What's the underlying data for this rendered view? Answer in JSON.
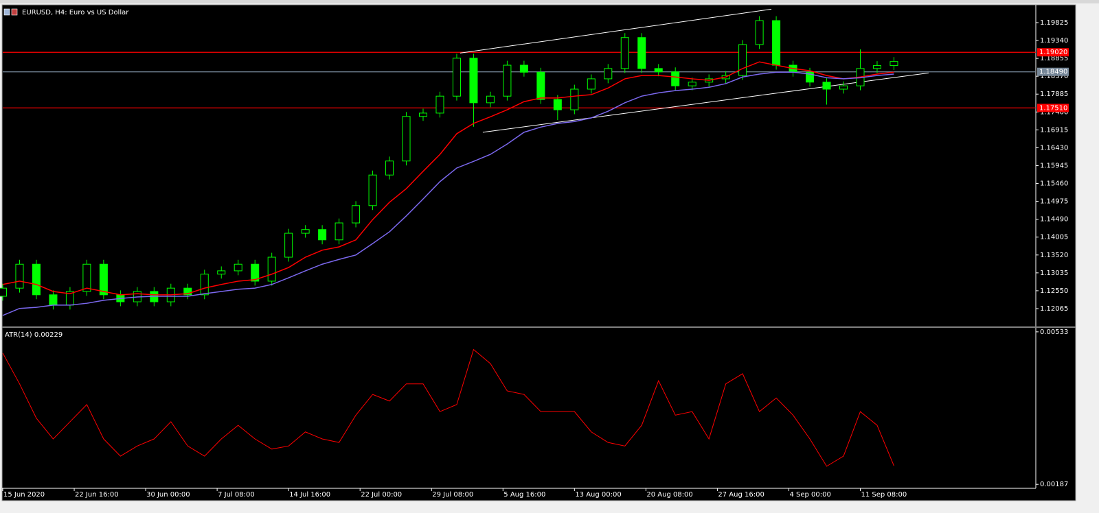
{
  "chart_data": [
    {
      "type": "candlestick",
      "title": "EURUSD, H4:  Euro vs US Dollar",
      "color": "#00ff00",
      "x": [
        0,
        8,
        16,
        24,
        32,
        40,
        48,
        56,
        64,
        72,
        80,
        88,
        96,
        104,
        112,
        120,
        128,
        136,
        144,
        152,
        160,
        168,
        176,
        184,
        192,
        200,
        208,
        216,
        224,
        232,
        240,
        248,
        256,
        264,
        272,
        280,
        288,
        296,
        304,
        312,
        320,
        328,
        336,
        344,
        352,
        360,
        368,
        376,
        384,
        392,
        400,
        408,
        416,
        424
      ],
      "open": [
        1.124,
        1.1262,
        1.1327,
        1.1244,
        1.1216,
        1.1253,
        1.1327,
        1.1244,
        1.1225,
        1.1253,
        1.1225,
        1.1262,
        1.1244,
        1.13,
        1.1309,
        1.1327,
        1.1281,
        1.1346,
        1.1411,
        1.1421,
        1.1393,
        1.1439,
        1.1486,
        1.1569,
        1.1607,
        1.1728,
        1.1737,
        1.1783,
        1.1886,
        1.1765,
        1.1783,
        1.1867,
        1.1848,
        1.1774,
        1.1746,
        1.1802,
        1.183,
        1.1858,
        1.1942,
        1.1858,
        1.1849,
        1.1811,
        1.1821,
        1.183,
        1.1839,
        1.1923,
        1.1988,
        1.1867,
        1.1848,
        1.1821,
        1.1802,
        1.1811,
        1.1858,
        1.1866
      ],
      "high": [
        1.1274,
        1.1339,
        1.1339,
        1.1256,
        1.1265,
        1.1339,
        1.1339,
        1.1256,
        1.1265,
        1.1265,
        1.1274,
        1.1274,
        1.1312,
        1.1321,
        1.1339,
        1.1339,
        1.1358,
        1.1423,
        1.1433,
        1.1433,
        1.1451,
        1.1498,
        1.1581,
        1.1619,
        1.174,
        1.1749,
        1.1795,
        1.1898,
        1.1898,
        1.1795,
        1.1879,
        1.1879,
        1.186,
        1.1786,
        1.1814,
        1.1842,
        1.187,
        1.1954,
        1.1954,
        1.187,
        1.1861,
        1.1833,
        1.1842,
        1.1851,
        1.1935,
        1.2,
        1.2,
        1.1879,
        1.186,
        1.1833,
        1.1823,
        1.191,
        1.1878,
        1.1889
      ],
      "low": [
        1.1228,
        1.125,
        1.1232,
        1.1204,
        1.1204,
        1.1241,
        1.1232,
        1.1213,
        1.1213,
        1.1213,
        1.1213,
        1.1232,
        1.1232,
        1.1288,
        1.1297,
        1.1269,
        1.1269,
        1.1334,
        1.1399,
        1.1381,
        1.1381,
        1.1427,
        1.1474,
        1.1557,
        1.1595,
        1.1716,
        1.1725,
        1.1771,
        1.17,
        1.1753,
        1.1771,
        1.1836,
        1.1762,
        1.1718,
        1.1734,
        1.179,
        1.1818,
        1.1846,
        1.1846,
        1.1837,
        1.1799,
        1.1799,
        1.1809,
        1.1818,
        1.1827,
        1.1911,
        1.1855,
        1.1836,
        1.1809,
        1.176,
        1.179,
        1.1799,
        1.1846,
        1.1854
      ],
      "close": [
        1.1262,
        1.1327,
        1.1244,
        1.1216,
        1.1253,
        1.1327,
        1.1244,
        1.1225,
        1.1253,
        1.1225,
        1.1262,
        1.1244,
        1.13,
        1.1309,
        1.1327,
        1.1281,
        1.1346,
        1.1411,
        1.1421,
        1.1393,
        1.1439,
        1.1486,
        1.1569,
        1.1607,
        1.1728,
        1.1737,
        1.1783,
        1.1886,
        1.1765,
        1.1783,
        1.1867,
        1.1848,
        1.1774,
        1.1746,
        1.1802,
        1.183,
        1.1858,
        1.1942,
        1.1858,
        1.1849,
        1.1811,
        1.1821,
        1.183,
        1.1839,
        1.1923,
        1.1988,
        1.1867,
        1.1848,
        1.1821,
        1.1802,
        1.1811,
        1.1858,
        1.1866,
        1.1877
      ],
      "overlays": [
        {
          "color": "#ff0000",
          "values": [
            1.1272,
            1.1281,
            1.1272,
            1.1253,
            1.1247,
            1.1262,
            1.1253,
            1.1244,
            1.1247,
            1.1244,
            1.1244,
            1.1247,
            1.1262,
            1.1272,
            1.1281,
            1.1285,
            1.13,
            1.1318,
            1.1346,
            1.1365,
            1.1374,
            1.1393,
            1.1448,
            1.1495,
            1.1532,
            1.1579,
            1.1625,
            1.1681,
            1.1709,
            1.1727,
            1.1746,
            1.1768,
            1.1778,
            1.1778,
            1.1783,
            1.1787,
            1.1805,
            1.183,
            1.1839,
            1.1839,
            1.1835,
            1.183,
            1.1826,
            1.1835,
            1.1858,
            1.1876,
            1.1867,
            1.1858,
            1.1852,
            1.1839,
            1.183,
            1.1835,
            1.1843,
            1.1848
          ]
        },
        {
          "color": "#7b68ee",
          "values": [
            1.1188,
            1.1207,
            1.121,
            1.1216,
            1.1216,
            1.1221,
            1.1229,
            1.1234,
            1.1238,
            1.124,
            1.124,
            1.124,
            1.1247,
            1.1253,
            1.1259,
            1.1262,
            1.1272,
            1.129,
            1.1309,
            1.1327,
            1.134,
            1.1352,
            1.1383,
            1.1415,
            1.1458,
            1.1504,
            1.1551,
            1.1588,
            1.1606,
            1.1625,
            1.1653,
            1.1685,
            1.1699,
            1.1709,
            1.1714,
            1.1724,
            1.1742,
            1.1765,
            1.1783,
            1.1792,
            1.1798,
            1.1802,
            1.1807,
            1.1817,
            1.1835,
            1.1843,
            1.1848,
            1.1848,
            1.1843,
            1.1833,
            1.183,
            1.1833,
            1.1839,
            1.1843
          ]
        }
      ],
      "levels": [
        {
          "value": 1.1902,
          "label": "1.19020",
          "color": "#ff0000"
        },
        {
          "value": 1.1849,
          "label": "1.18490",
          "color": "#778899"
        },
        {
          "value": 1.1751,
          "label": "1.17510",
          "color": "#ff0000"
        }
      ],
      "trendlines": [
        {
          "x": [
            217.6,
            365.7
          ],
          "y": [
            1.19,
            1.2019
          ]
        },
        {
          "x": [
            228.4,
            440.5
          ],
          "y": [
            1.1685,
            1.1846
          ]
        }
      ],
      "xlim": [
        0,
        491.5
      ],
      "ylim": [
        1.11618,
        1.2029
      ],
      "yticks": [
        1.19825,
        {
          "value": 1.1934,
          "label": "1.19340"
        },
        1.18855,
        {
          "value": 1.1837,
          "label": "1.18370"
        },
        1.17885,
        {
          "value": 1.174,
          "label": "1.17400"
        },
        1.16915,
        {
          "value": 1.1643,
          "label": "1.16430"
        },
        1.15945,
        {
          "value": 1.1546,
          "label": "1.15460"
        },
        1.14975,
        {
          "value": 1.1449,
          "label": "1.14490"
        },
        1.14005,
        {
          "value": 1.1352,
          "label": "1.13520"
        },
        1.13035,
        {
          "value": 1.1255,
          "label": "1.12550"
        },
        1.12065
      ]
    },
    {
      "type": "line",
      "title": "ATR(14) 0.00229",
      "color": "#ff0000",
      "x": [
        0,
        8,
        16,
        24,
        32,
        40,
        48,
        56,
        64,
        72,
        80,
        88,
        96,
        104,
        112,
        120,
        128,
        136,
        144,
        152,
        160,
        168,
        176,
        184,
        192,
        200,
        208,
        216,
        224,
        232,
        240,
        248,
        256,
        264,
        272,
        280,
        288,
        296,
        304,
        312,
        320,
        328,
        336,
        344,
        352,
        360,
        368,
        376,
        384,
        392,
        400,
        408,
        416,
        424
      ],
      "values": [
        0.00485,
        0.00415,
        0.00337,
        0.0029,
        0.00329,
        0.00368,
        0.0029,
        0.00251,
        0.00274,
        0.0029,
        0.00329,
        0.00274,
        0.00251,
        0.0029,
        0.00321,
        0.0029,
        0.00267,
        0.00274,
        0.00306,
        0.0029,
        0.00282,
        0.00344,
        0.00391,
        0.00376,
        0.00415,
        0.00415,
        0.00352,
        0.00368,
        0.00493,
        0.00461,
        0.00399,
        0.00391,
        0.00352,
        0.00352,
        0.00352,
        0.00306,
        0.00282,
        0.00274,
        0.00321,
        0.00422,
        0.00344,
        0.00352,
        0.0029,
        0.00415,
        0.00438,
        0.00352,
        0.00383,
        0.00344,
        0.0029,
        0.00228,
        0.00251,
        0.00352,
        0.00321,
        0.00229
      ],
      "xlim": [
        0,
        491.5
      ],
      "ylim": [
        0.00178,
        0.00539
      ],
      "yticks": [
        0.00533,
        0.00187
      ],
      "xticks": [
        {
          "value": 0,
          "label": "15 Jun 2020"
        },
        {
          "value": 34,
          "label": "22 Jun 16:00"
        },
        {
          "value": 68,
          "label": "30 Jun 00:00"
        },
        {
          "value": 102,
          "label": "7 Jul 08:00"
        },
        {
          "value": 136,
          "label": "14 Jul 16:00"
        },
        {
          "value": 170,
          "label": "22 Jul 00:00"
        },
        {
          "value": 204,
          "label": "29 Jul 08:00"
        },
        {
          "value": 238,
          "label": "5 Aug 16:00"
        },
        {
          "value": 272,
          "label": "13 Aug 00:00"
        },
        {
          "value": 306,
          "label": "20 Aug 08:00"
        },
        {
          "value": 340,
          "label": "27 Aug 16:00"
        },
        {
          "value": 374,
          "label": "4 Sep 00:00"
        },
        {
          "value": 408,
          "label": "11 Sep 08:00"
        }
      ]
    }
  ]
}
